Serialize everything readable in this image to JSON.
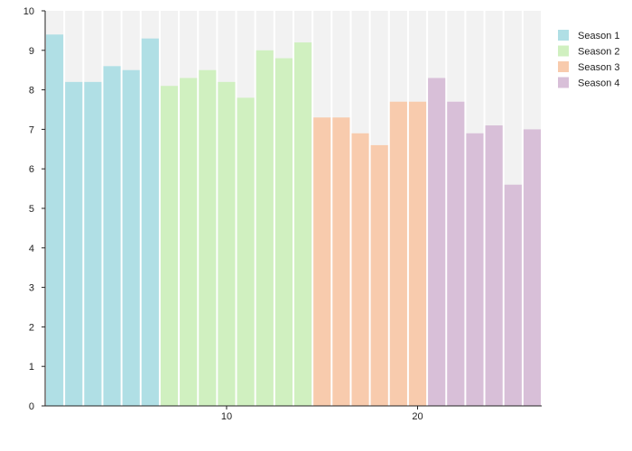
{
  "chart_data": {
    "type": "bar",
    "x": [
      1,
      2,
      3,
      4,
      5,
      6,
      7,
      8,
      9,
      10,
      11,
      12,
      13,
      14,
      15,
      16,
      17,
      18,
      19,
      20,
      21,
      22,
      23,
      24,
      25,
      26
    ],
    "series": [
      {
        "name": "Season 1",
        "color": "#b0dfe5",
        "x": [
          1,
          2,
          3,
          4,
          5,
          6
        ],
        "values": [
          9.4,
          8.2,
          8.2,
          8.6,
          8.5,
          9.3
        ]
      },
      {
        "name": "Season 2",
        "color": "#d0f0c0",
        "x": [
          7,
          8,
          9,
          10,
          11,
          12,
          13,
          14
        ],
        "values": [
          8.1,
          8.3,
          8.5,
          8.2,
          7.8,
          9.0,
          8.8,
          9.2
        ]
      },
      {
        "name": "Season 3",
        "color": "#f8cbad",
        "x": [
          15,
          16,
          17,
          18,
          19,
          20
        ],
        "values": [
          7.3,
          7.3,
          6.9,
          6.6,
          7.7,
          7.7
        ]
      },
      {
        "name": "Season 4",
        "color": "#d8bfd8",
        "x": [
          21,
          22,
          23,
          24,
          25,
          26
        ],
        "values": [
          8.3,
          7.7,
          6.9,
          7.1,
          5.6,
          7.0
        ]
      }
    ],
    "ylim": [
      0,
      10
    ],
    "yticks": [
      0,
      1,
      2,
      3,
      4,
      5,
      6,
      7,
      8,
      9,
      10
    ],
    "xticks": [
      10,
      20
    ],
    "xlim": [
      0.5,
      26.5
    ],
    "grid": false,
    "legend_position": "top-right",
    "background_color": "#f2f2f2",
    "title": "",
    "xlabel": "",
    "ylabel": ""
  }
}
